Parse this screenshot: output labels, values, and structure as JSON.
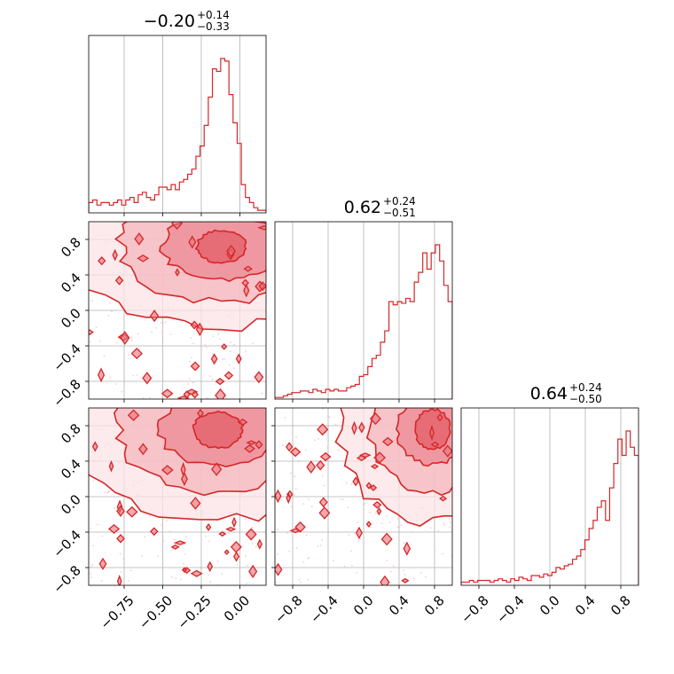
{
  "chart_data": {
    "type": "corner",
    "color": "#d62728",
    "parameters": [
      {
        "title": {
          "value": "−0.20",
          "plus": "+0.14",
          "minus": "−0.33"
        },
        "range": [
          -0.98,
          0.17
        ],
        "ticks": [
          -0.75,
          -0.5,
          -0.25,
          0.0
        ],
        "tick_labels": [
          "−0.75",
          "−0.50",
          "−0.25",
          "0.00"
        ],
        "hist_counts": [
          4,
          5,
          3,
          4,
          4,
          3,
          4,
          5,
          3,
          5,
          6,
          4,
          7,
          8,
          6,
          5,
          7,
          10,
          10,
          9,
          11,
          9,
          12,
          13,
          15,
          17,
          22,
          26,
          34,
          45,
          56,
          55,
          60,
          59,
          46,
          35,
          27,
          11,
          6,
          4,
          2,
          1,
          1
        ]
      },
      {
        "title": {
          "value": "0.62",
          "plus": "+0.24",
          "minus": "−0.51"
        },
        "range": [
          -1.0,
          1.0
        ],
        "ticks": [
          -0.8,
          -0.4,
          0.0,
          0.4,
          0.8
        ],
        "tick_labels": [
          "−0.8",
          "−0.4",
          "0.0",
          "0.4",
          "0.8"
        ],
        "hist_counts": [
          1,
          1,
          2,
          3,
          4,
          4,
          5,
          5,
          4,
          6,
          5,
          4,
          6,
          5,
          6,
          5,
          5,
          7,
          8,
          9,
          14,
          15,
          20,
          25,
          27,
          35,
          42,
          60,
          58,
          60,
          59,
          62,
          60,
          72,
          78,
          90,
          80,
          90,
          95,
          85,
          70,
          60
        ]
      },
      {
        "title": {
          "value": "0.64",
          "plus": "+0.24",
          "minus": "−0.50"
        },
        "range": [
          -1.0,
          1.0
        ],
        "ticks": [
          -0.8,
          -0.4,
          0.0,
          0.4,
          0.8
        ],
        "tick_labels": [
          "−0.8",
          "−0.4",
          "0.0",
          "0.4",
          "0.8"
        ],
        "hist_counts": [
          2,
          2,
          3,
          2,
          3,
          3,
          3,
          2,
          3,
          4,
          3,
          2,
          4,
          3,
          5,
          4,
          3,
          6,
          6,
          5,
          7,
          6,
          8,
          11,
          10,
          12,
          13,
          16,
          18,
          22,
          28,
          35,
          40,
          48,
          52,
          40,
          60,
          75,
          90,
          80,
          95,
          85,
          80
        ]
      }
    ],
    "pairs": [
      {
        "row": 1,
        "col": 0,
        "x": 0,
        "y": 1,
        "density_peak": {
          "x": -0.12,
          "y": 0.72
        },
        "levels": [
          {
            "rx": 0.16,
            "ry": 0.18
          },
          {
            "rx": 0.38,
            "ry": 0.38
          },
          {
            "rx": 0.66,
            "ry": 0.62
          },
          {
            "rx": 0.95,
            "ry": 0.9
          }
        ]
      },
      {
        "row": 2,
        "col": 0,
        "x": 0,
        "y": 2,
        "density_peak": {
          "x": -0.14,
          "y": 0.75
        },
        "levels": [
          {
            "rx": 0.16,
            "ry": 0.2
          },
          {
            "rx": 0.38,
            "ry": 0.4
          },
          {
            "rx": 0.66,
            "ry": 0.7
          },
          {
            "rx": 0.95,
            "ry": 1.0
          }
        ]
      },
      {
        "row": 2,
        "col": 1,
        "x": 1,
        "y": 2,
        "density_peak": {
          "x": 0.78,
          "y": 0.76
        },
        "levels": [
          {
            "rx": 0.2,
            "ry": 0.22
          },
          {
            "rx": 0.4,
            "ry": 0.4
          },
          {
            "rx": 0.7,
            "ry": 0.7
          },
          {
            "rx": 1.05,
            "ry": 1.05
          }
        ]
      }
    ]
  }
}
